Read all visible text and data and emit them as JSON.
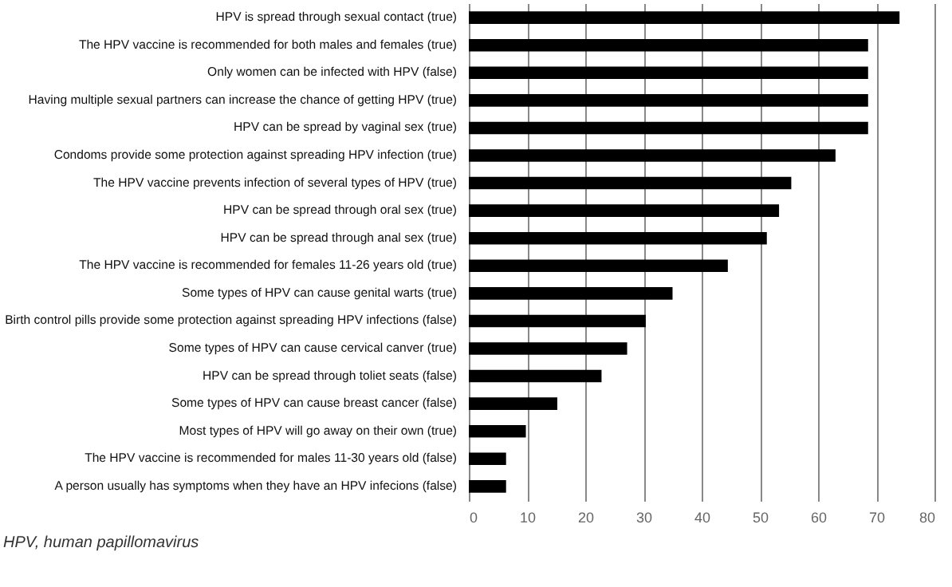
{
  "chart_data": {
    "type": "bar",
    "orientation": "horizontal",
    "categories": [
      "HPV is spread through sexual contact (true)",
      "The HPV vaccine is recommended for both males and females (true)",
      "Only women can be infected with HPV (false)",
      "Having multiple sexual partners can increase the chance of getting HPV (true)",
      "HPV can be spread by vaginal sex (true)",
      "Condoms provide some protection against spreading HPV infection (true)",
      "The HPV vaccine prevents infection of several types of HPV (true)",
      "HPV can be spread through oral sex (true)",
      "HPV can be spread through anal sex (true)",
      "The HPV vaccine is recommended for females 11-26 years old (true)",
      "Some types of HPV can cause genital warts (true)",
      "Birth control pills provide some protection against spreading HPV infections (false)",
      "Some types of HPV can cause cervical canver (true)",
      "HPV can be spread through toliet seats (false)",
      "Some types of HPV can cause breast cancer (false)",
      "Most types of HPV will go away on their own (true)",
      "The HPV vaccine is recommended for males 11-30 years old (false)",
      "A person usually has symptoms when they have an HPV infecions (false)"
    ],
    "values": [
      74,
      68.6,
      68.6,
      68.6,
      68.6,
      63,
      55.4,
      53.3,
      51.2,
      44.5,
      35,
      30.4,
      27.2,
      22.8,
      15.2,
      9.8,
      6.4,
      6.4
    ],
    "color": "#000000",
    "xlim": [
      0,
      80
    ],
    "xticks": [
      0,
      10,
      20,
      30,
      40,
      50,
      60,
      70,
      80
    ],
    "grid": "x",
    "annotations": [
      "HPV, human papillomavirus"
    ]
  }
}
